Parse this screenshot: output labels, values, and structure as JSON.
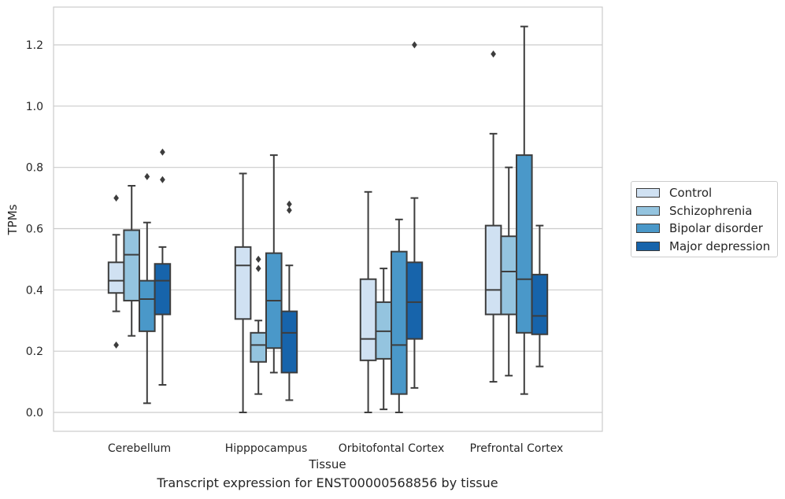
{
  "chart_data": {
    "type": "boxplot",
    "title": "",
    "xlabel": "Tissue",
    "ylabel": "TPMs",
    "ylim": [
      -0.06,
      1.32
    ],
    "yticks": [
      0.0,
      0.2,
      0.4,
      0.6,
      0.8,
      1.0,
      1.2
    ],
    "ytick_labels": [
      "0.0",
      "0.2",
      "0.4",
      "0.6",
      "0.8",
      "1.0",
      "1.2"
    ],
    "grid": "horizontal",
    "legend_position": "right",
    "categories": [
      "Cerebellum",
      "Hipppocampus",
      "Orbitofontal Cortex",
      "Prefrontal Cortex"
    ],
    "series": [
      {
        "name": "Control",
        "color": "#d0e1f2",
        "boxes": [
          {
            "whislo": 0.33,
            "q1": 0.39,
            "med": 0.43,
            "q3": 0.49,
            "whishi": 0.58,
            "fliers": [
              0.7,
              0.22
            ]
          },
          {
            "whislo": 0.0,
            "q1": 0.305,
            "med": 0.48,
            "q3": 0.54,
            "whishi": 0.78,
            "fliers": []
          },
          {
            "whislo": 0.0,
            "q1": 0.17,
            "med": 0.24,
            "q3": 0.435,
            "whishi": 0.72,
            "fliers": []
          },
          {
            "whislo": 0.1,
            "q1": 0.32,
            "med": 0.4,
            "q3": 0.61,
            "whishi": 0.91,
            "fliers": [
              1.17
            ]
          }
        ]
      },
      {
        "name": "Schizophrenia",
        "color": "#94c4df",
        "boxes": [
          {
            "whislo": 0.25,
            "q1": 0.365,
            "med": 0.515,
            "q3": 0.595,
            "whishi": 0.74,
            "fliers": []
          },
          {
            "whislo": 0.06,
            "q1": 0.165,
            "med": 0.22,
            "q3": 0.26,
            "whishi": 0.3,
            "fliers": [
              0.5,
              0.47
            ]
          },
          {
            "whislo": 0.01,
            "q1": 0.175,
            "med": 0.265,
            "q3": 0.36,
            "whishi": 0.47,
            "fliers": []
          },
          {
            "whislo": 0.12,
            "q1": 0.32,
            "med": 0.46,
            "q3": 0.575,
            "whishi": 0.8,
            "fliers": []
          }
        ]
      },
      {
        "name": "Bipolar disorder",
        "color": "#4a98c9",
        "boxes": [
          {
            "whislo": 0.03,
            "q1": 0.265,
            "med": 0.37,
            "q3": 0.43,
            "whishi": 0.62,
            "fliers": [
              0.77
            ]
          },
          {
            "whislo": 0.13,
            "q1": 0.21,
            "med": 0.365,
            "q3": 0.52,
            "whishi": 0.84,
            "fliers": []
          },
          {
            "whislo": 0.0,
            "q1": 0.06,
            "med": 0.22,
            "q3": 0.525,
            "whishi": 0.63,
            "fliers": []
          },
          {
            "whislo": 0.06,
            "q1": 0.26,
            "med": 0.435,
            "q3": 0.84,
            "whishi": 1.26,
            "fliers": []
          }
        ]
      },
      {
        "name": "Major depression",
        "color": "#1764ab",
        "boxes": [
          {
            "whislo": 0.09,
            "q1": 0.32,
            "med": 0.43,
            "q3": 0.485,
            "whishi": 0.54,
            "fliers": [
              0.85,
              0.76
            ]
          },
          {
            "whislo": 0.04,
            "q1": 0.13,
            "med": 0.26,
            "q3": 0.33,
            "whishi": 0.48,
            "fliers": [
              0.68,
              0.66
            ]
          },
          {
            "whislo": 0.08,
            "q1": 0.24,
            "med": 0.36,
            "q3": 0.49,
            "whishi": 0.7,
            "fliers": [
              1.2
            ]
          },
          {
            "whislo": 0.15,
            "q1": 0.255,
            "med": 0.315,
            "q3": 0.45,
            "whishi": 0.61,
            "fliers": []
          }
        ]
      }
    ]
  },
  "caption": "Transcript expression for ENST00000568856 by tissue"
}
